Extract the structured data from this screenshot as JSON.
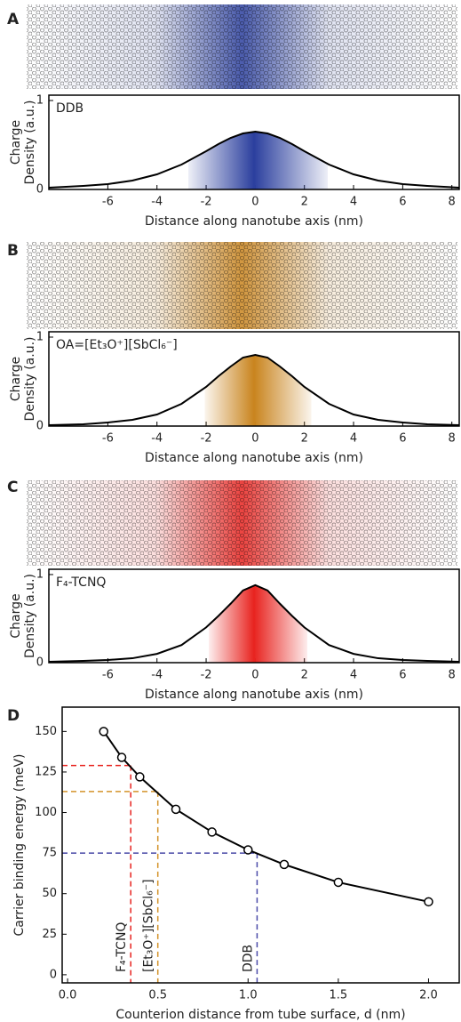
{
  "chart_data": [
    {
      "type": "line",
      "panel": "A",
      "annotation": "DDB",
      "ylabel": [
        "Charge",
        "Density (a.u.)"
      ],
      "xlabel": "Distance along nanotube axis (nm)",
      "x": [
        -8.4,
        -7,
        -6,
        -5,
        -4,
        -3,
        -2,
        -1.5,
        -1,
        -0.5,
        0,
        0.5,
        1,
        1.5,
        2,
        3,
        4,
        5,
        6,
        7,
        8.3
      ],
      "values": [
        0.02,
        0.04,
        0.06,
        0.1,
        0.17,
        0.28,
        0.43,
        0.51,
        0.58,
        0.63,
        0.65,
        0.63,
        0.58,
        0.51,
        0.43,
        0.28,
        0.17,
        0.1,
        0.06,
        0.04,
        0.02
      ],
      "line_color": "#000000",
      "fill_color": "#2b3f9e",
      "xlim": [
        -8.4,
        8.3
      ],
      "ylim": [
        0,
        1.06
      ],
      "xticks": [
        -6,
        -4,
        -2,
        0,
        2,
        4,
        6,
        8
      ],
      "yticks": [
        0,
        1
      ]
    },
    {
      "type": "line",
      "panel": "B",
      "annotation": "OA=[Et₃O⁺][SbCl₆⁻]",
      "ylabel": [
        "Charge",
        "Density (a.u.)"
      ],
      "xlabel": "Distance along nanotube axis (nm)",
      "x": [
        -8.4,
        -7,
        -6,
        -5,
        -4,
        -3,
        -2,
        -1.5,
        -1,
        -0.5,
        0,
        0.5,
        1,
        1.5,
        2,
        3,
        4,
        5,
        6,
        7,
        8.3
      ],
      "values": [
        0.01,
        0.02,
        0.04,
        0.07,
        0.13,
        0.25,
        0.44,
        0.56,
        0.67,
        0.77,
        0.8,
        0.77,
        0.67,
        0.56,
        0.44,
        0.25,
        0.13,
        0.07,
        0.04,
        0.02,
        0.01
      ],
      "line_color": "#000000",
      "fill_color": "#c9841e",
      "xlim": [
        -8.4,
        8.3
      ],
      "ylim": [
        0,
        1.06
      ],
      "xticks": [
        -6,
        -4,
        -2,
        0,
        2,
        4,
        6,
        8
      ],
      "yticks": [
        0,
        1
      ]
    },
    {
      "type": "line",
      "panel": "C",
      "annotation": "F₄-TCNQ",
      "ylabel": [
        "Charge",
        "Density (a.u.)"
      ],
      "xlabel": "Distance along nanotube axis (nm)",
      "x": [
        -8.4,
        -7,
        -6,
        -5,
        -4,
        -3,
        -2,
        -1.5,
        -1,
        -0.5,
        0,
        0.5,
        1,
        1.5,
        2,
        3,
        4,
        5,
        6,
        7,
        8.3
      ],
      "values": [
        0.01,
        0.02,
        0.03,
        0.05,
        0.1,
        0.2,
        0.4,
        0.53,
        0.67,
        0.82,
        0.88,
        0.82,
        0.67,
        0.53,
        0.4,
        0.2,
        0.1,
        0.05,
        0.03,
        0.02,
        0.01
      ],
      "line_color": "#000000",
      "fill_color": "#e8231f",
      "xlim": [
        -8.4,
        8.3
      ],
      "ylim": [
        0,
        1.06
      ],
      "xticks": [
        -6,
        -4,
        -2,
        0,
        2,
        4,
        6,
        8
      ],
      "yticks": [
        0,
        1
      ]
    },
    {
      "type": "line",
      "panel": "D",
      "markers": true,
      "ylabel": "Carrier binding energy (meV)",
      "xlabel": "Counterion distance from tube surface, d (nm)",
      "x": [
        0.2,
        0.3,
        0.4,
        0.6,
        0.8,
        1.0,
        1.2,
        1.5,
        2.0
      ],
      "values": [
        150,
        134,
        122,
        102,
        88,
        77,
        68,
        57,
        45
      ],
      "line_color": "#000000",
      "xlim": [
        -0.03,
        2.17
      ],
      "ylim": [
        -5,
        165
      ],
      "xticks": [
        {
          "value": 0,
          "label": "0.0"
        },
        0.5,
        {
          "value": 1,
          "label": "1.0"
        },
        1.5,
        {
          "value": 2,
          "label": "2.0"
        }
      ],
      "yticks": [
        0,
        25,
        50,
        75,
        100,
        125,
        150
      ],
      "guides": [
        {
          "label": "F₄-TCNQ",
          "x": 0.35,
          "y": 129,
          "color": "#e8231f"
        },
        {
          "label": "[Et₃O⁺][SbCl₆⁻]",
          "x": 0.5,
          "y": 113,
          "color": "#d4932a"
        },
        {
          "label": "DDB",
          "x": 1.05,
          "y": 75,
          "color": "#4a4aa8"
        }
      ]
    }
  ]
}
